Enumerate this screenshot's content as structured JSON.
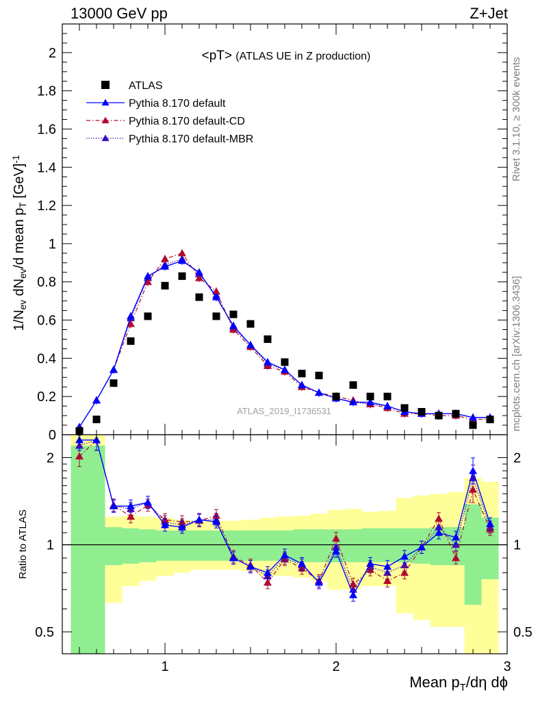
{
  "header": {
    "energy": "13000 GeV pp",
    "process": "Z+Jet"
  },
  "side_labels": {
    "rivet": "Rivet 3.1.10, ≥ 300k events",
    "mcplots": "mcplots.cern.ch [arXiv:1306.3436]"
  },
  "chart_data": [
    {
      "type": "scatter",
      "panel": "main",
      "title": "<pT> (ATLAS UE in Z production)",
      "watermark": "ATLAS_2019_I1736531",
      "xlabel": "Mean p_T/dη dϕ",
      "ylabel": "1/N_ev dN_ev/d mean p_T [GeV]^-1",
      "xlim": [
        0.4,
        3.0
      ],
      "ylim": [
        0,
        2.15
      ],
      "xticks": [
        1,
        2,
        3
      ],
      "yticks": [
        0,
        0.2,
        0.4,
        0.6,
        0.8,
        1.0,
        1.2,
        1.4,
        1.6,
        1.8,
        2.0
      ],
      "ytick_labels": [
        "0",
        "0.2",
        "0.4",
        "0.6",
        "0.8",
        "1",
        "1.2",
        "1.4",
        "1.6",
        "1.8",
        "2"
      ],
      "legend_position": "top-left",
      "x": [
        0.5,
        0.6,
        0.7,
        0.8,
        0.9,
        1.0,
        1.1,
        1.2,
        1.3,
        1.4,
        1.5,
        1.6,
        1.7,
        1.8,
        1.9,
        2.0,
        2.1,
        2.2,
        2.3,
        2.4,
        2.5,
        2.6,
        2.7,
        2.8,
        2.9
      ],
      "series": [
        {
          "name": "ATLAS",
          "marker": "square",
          "color": "#000000",
          "values": [
            0.02,
            0.08,
            0.27,
            0.49,
            0.62,
            0.78,
            0.83,
            0.72,
            0.62,
            0.63,
            0.58,
            0.5,
            0.38,
            0.32,
            0.31,
            0.2,
            0.26,
            0.2,
            0.2,
            0.14,
            0.12,
            0.1,
            0.11,
            0.05,
            0.08
          ]
        },
        {
          "name": "Pythia 8.170 default",
          "marker": "triangle",
          "line": "solid",
          "color": "#0000ff",
          "values": [
            0.04,
            0.18,
            0.34,
            0.62,
            0.83,
            0.88,
            0.91,
            0.85,
            0.72,
            0.57,
            0.47,
            0.38,
            0.34,
            0.26,
            0.22,
            0.19,
            0.17,
            0.17,
            0.15,
            0.12,
            0.11,
            0.11,
            0.11,
            0.09,
            0.09
          ]
        },
        {
          "name": "Pythia 8.170 default-CD",
          "marker": "triangle",
          "line": "dashdot",
          "color": "#b00a30",
          "values": [
            0.04,
            0.18,
            0.34,
            0.58,
            0.8,
            0.92,
            0.95,
            0.82,
            0.75,
            0.55,
            0.46,
            0.36,
            0.33,
            0.25,
            0.22,
            0.2,
            0.18,
            0.16,
            0.14,
            0.11,
            0.11,
            0.1,
            0.1,
            0.08,
            0.08
          ]
        },
        {
          "name": "Pythia 8.170 default-MBR",
          "marker": "triangle",
          "line": "dotted",
          "color": "#3a10b8",
          "values": [
            0.04,
            0.18,
            0.34,
            0.61,
            0.82,
            0.89,
            0.92,
            0.84,
            0.73,
            0.56,
            0.47,
            0.37,
            0.34,
            0.26,
            0.22,
            0.19,
            0.17,
            0.16,
            0.15,
            0.12,
            0.11,
            0.11,
            0.11,
            0.09,
            0.09
          ]
        }
      ]
    },
    {
      "type": "line",
      "panel": "ratio",
      "ylabel": "Ratio to ATLAS",
      "xlabel": "Mean p_T/dη dϕ",
      "xlim": [
        0.4,
        3.0
      ],
      "ylim": [
        0.42,
        2.4
      ],
      "log_y": true,
      "yticks": [
        0.5,
        1,
        2
      ],
      "ytick_labels": [
        "0.5",
        "1",
        "2"
      ],
      "xticks": [
        1,
        2,
        3
      ],
      "xtick_labels": [
        "1",
        "2",
        "3"
      ],
      "x": [
        0.5,
        0.6,
        0.7,
        0.8,
        0.9,
        1.0,
        1.1,
        1.2,
        1.3,
        1.4,
        1.5,
        1.6,
        1.7,
        1.8,
        1.9,
        2.0,
        2.1,
        2.2,
        2.3,
        2.4,
        2.5,
        2.6,
        2.7,
        2.8,
        2.9
      ],
      "bin_edges": [
        0.45,
        0.55,
        0.65,
        0.75,
        0.85,
        0.95,
        1.05,
        1.15,
        1.25,
        1.35,
        1.45,
        1.55,
        1.65,
        1.75,
        1.85,
        1.95,
        2.05,
        2.15,
        2.25,
        2.35,
        2.45,
        2.55,
        2.65,
        2.75,
        2.85,
        2.95
      ],
      "bands": {
        "stat_color": "#90ee90",
        "total_color": "#ffff99",
        "stat": [
          [
            0.3,
            2.2
          ],
          [
            0.3,
            2.2
          ],
          [
            0.85,
            1.15
          ],
          [
            0.86,
            1.14
          ],
          [
            0.87,
            1.13
          ],
          [
            0.88,
            1.12
          ],
          [
            0.88,
            1.12
          ],
          [
            0.88,
            1.12
          ],
          [
            0.88,
            1.12
          ],
          [
            0.88,
            1.12
          ],
          [
            0.88,
            1.12
          ],
          [
            0.88,
            1.12
          ],
          [
            0.88,
            1.12
          ],
          [
            0.87,
            1.13
          ],
          [
            0.87,
            1.13
          ],
          [
            0.87,
            1.13
          ],
          [
            0.87,
            1.13
          ],
          [
            0.87,
            1.14
          ],
          [
            0.87,
            1.14
          ],
          [
            0.87,
            1.14
          ],
          [
            0.86,
            1.14
          ],
          [
            0.85,
            1.15
          ],
          [
            0.85,
            1.15
          ],
          [
            0.62,
            1.38
          ],
          [
            0.76,
            1.24
          ]
        ],
        "total": [
          [
            0.3,
            2.4
          ],
          [
            0.42,
            2.4
          ],
          [
            0.63,
            1.25
          ],
          [
            0.72,
            1.26
          ],
          [
            0.75,
            1.25
          ],
          [
            0.78,
            1.24
          ],
          [
            0.8,
            1.22
          ],
          [
            0.82,
            1.21
          ],
          [
            0.82,
            1.21
          ],
          [
            0.82,
            1.21
          ],
          [
            0.81,
            1.22
          ],
          [
            0.78,
            1.24
          ],
          [
            0.78,
            1.25
          ],
          [
            0.77,
            1.26
          ],
          [
            0.75,
            1.28
          ],
          [
            0.7,
            1.32
          ],
          [
            0.7,
            1.33
          ],
          [
            0.72,
            1.3
          ],
          [
            0.72,
            1.31
          ],
          [
            0.58,
            1.45
          ],
          [
            0.55,
            1.48
          ],
          [
            0.52,
            1.5
          ],
          [
            0.52,
            1.52
          ],
          [
            0.4,
            1.7
          ],
          [
            0.38,
            1.65
          ]
        ]
      },
      "series": [
        {
          "name": "Pythia 8.170 default",
          "color": "#0000ff",
          "values": [
            2.3,
            2.3,
            1.36,
            1.36,
            1.4,
            1.17,
            1.15,
            1.22,
            1.2,
            0.9,
            0.84,
            0.8,
            0.92,
            0.86,
            0.74,
            0.95,
            0.67,
            0.86,
            0.84,
            0.91,
            0.98,
            1.1,
            1.06,
            1.8,
            1.18
          ]
        },
        {
          "name": "Pythia 8.170 default-CD",
          "color": "#b00a30",
          "values": [
            2.02,
            2.3,
            1.37,
            1.25,
            1.37,
            1.22,
            1.2,
            1.21,
            1.26,
            0.91,
            0.85,
            0.74,
            0.89,
            0.83,
            0.75,
            1.05,
            0.73,
            0.82,
            0.75,
            0.8,
            0.98,
            1.23,
            0.9,
            1.55,
            1.13
          ]
        },
        {
          "name": "Pythia 8.170 default-MBR",
          "color": "#3a10b8",
          "values": [
            2.2,
            2.3,
            1.36,
            1.33,
            1.4,
            1.2,
            1.17,
            1.22,
            1.22,
            0.9,
            0.84,
            0.78,
            0.9,
            0.85,
            0.74,
            0.98,
            0.7,
            0.84,
            0.8,
            0.85,
            0.98,
            1.15,
            1.0,
            1.7,
            1.15
          ]
        }
      ]
    }
  ]
}
